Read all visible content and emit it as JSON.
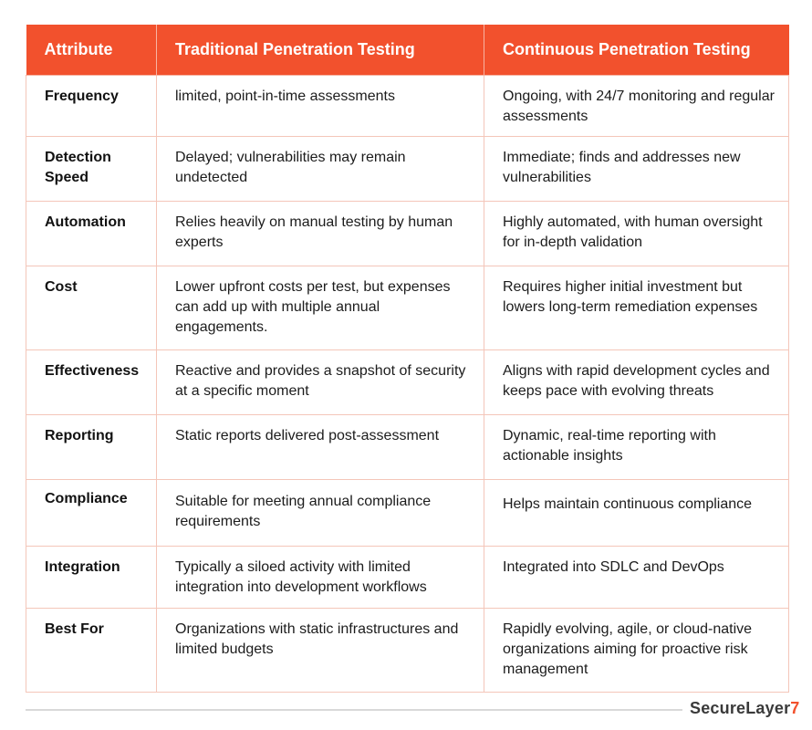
{
  "table": {
    "headers": [
      "Attribute",
      "Traditional Penetration Testing",
      "Continuous Penetration Testing"
    ],
    "rows": [
      {
        "attribute": "Frequency",
        "traditional": "limited, point-in-time assessments",
        "continuous": "Ongoing, with 24/7 monitoring and regular assessments"
      },
      {
        "attribute": "Detection Speed",
        "traditional": "Delayed; vulnerabilities may remain undetected",
        "continuous": "Immediate; finds and addresses new vulnerabilities"
      },
      {
        "attribute": "Automation",
        "traditional": "Relies heavily on manual testing by human experts",
        "continuous": "Highly automated, with human oversight for in-depth validation"
      },
      {
        "attribute": "Cost",
        "traditional": "Lower upfront costs per test, but expenses can add up with multiple annual engagements.",
        "continuous": "Requires higher initial investment but lowers long-term remediation expenses"
      },
      {
        "attribute": "Effectiveness",
        "traditional": "Reactive and provides a snapshot of security at a specific moment",
        "continuous": "Aligns with rapid development cycles and keeps pace with evolving threats"
      },
      {
        "attribute": "Reporting",
        "traditional": "Static reports delivered post-assessment",
        "continuous": "Dynamic, real-time reporting with actionable insights"
      },
      {
        "attribute": "Compliance",
        "traditional": "Suitable for meeting annual compliance requirements",
        "continuous": "Helps maintain continuous compliance"
      },
      {
        "attribute": "Integration",
        "traditional": "Typically a siloed activity with limited integration into development workflows",
        "continuous": "Integrated into SDLC and DevOps"
      },
      {
        "attribute": "Best For",
        "traditional": "Organizations with static infrastructures and limited budgets",
        "continuous": "Rapidly evolving, agile, or cloud-native organizations aiming for proactive risk management"
      }
    ]
  },
  "footer": {
    "logo_text": "SecureLayer",
    "logo_accent": "7"
  },
  "colors": {
    "header_bg": "#f2512d",
    "header_text": "#ffffff",
    "border": "#f4c6b9",
    "logo_accent": "#f2512d"
  }
}
